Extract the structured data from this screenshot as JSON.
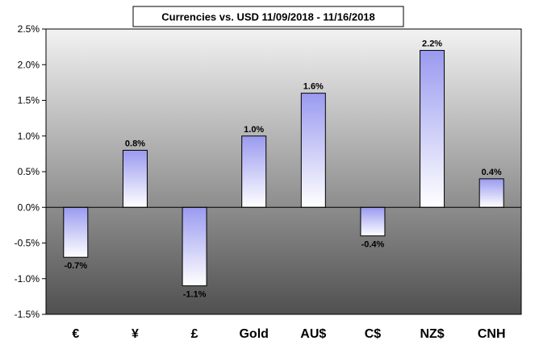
{
  "chart_data": {
    "type": "bar",
    "title": "Currencies vs. USD 11/09/2018 - 11/16/2018",
    "categories": [
      "€",
      "¥",
      "£",
      "Gold",
      "AU$",
      "C$",
      "NZ$",
      "CNH"
    ],
    "values": [
      -0.7,
      0.8,
      -1.1,
      1.0,
      1.6,
      -0.4,
      2.2,
      0.4
    ],
    "data_labels": [
      "-0.7%",
      "0.8%",
      "-1.1%",
      "1.0%",
      "1.6%",
      "-0.4%",
      "2.2%",
      "0.4%"
    ],
    "xlabel": "",
    "ylabel": "",
    "ylim": [
      -1.5,
      2.5
    ],
    "yticks": [
      2.5,
      2.0,
      1.5,
      1.0,
      0.5,
      0.0,
      -0.5,
      -1.0,
      -1.5
    ],
    "ytick_labels": [
      "2.5%",
      "2.0%",
      "1.5%",
      "1.0%",
      "0.5%",
      "0.0%",
      "-0.5%",
      "-1.0%",
      "-1.5%"
    ],
    "grid": false,
    "legend": "none",
    "colors": {
      "bar_fill_top": "#9a9af0",
      "bar_fill_bottom": "#ffffff",
      "plot_bg_top": "#f2f2f2",
      "plot_bg_bottom": "#505050",
      "bar_stroke": "#000000"
    }
  }
}
